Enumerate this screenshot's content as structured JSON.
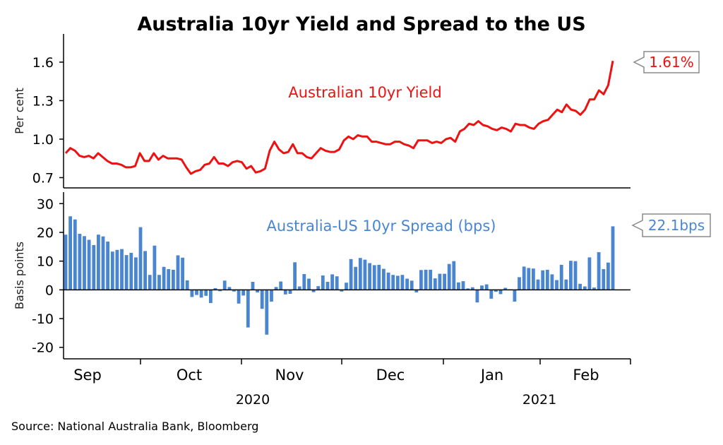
{
  "title": "Australia 10yr Yield and Spread to the US",
  "source": "Source: National Australia Bank, Bloomberg",
  "colors": {
    "yield": "#ee1111",
    "spread": "#4a86d0",
    "axis": "#000000",
    "callout_border": "#8a8a8a"
  },
  "chart_data": [
    {
      "type": "line",
      "series_label": "Australian 10yr Yield",
      "ylabel": "Per cent",
      "ylim": [
        0.62,
        1.82
      ],
      "yticks": [
        "0.7",
        "1.0",
        "1.3",
        "1.6"
      ],
      "callout": "1.61%",
      "series": [
        {
          "name": "Australian 10yr Yield",
          "values": [
            0.89,
            0.93,
            0.91,
            0.87,
            0.86,
            0.87,
            0.85,
            0.89,
            0.86,
            0.83,
            0.81,
            0.81,
            0.8,
            0.78,
            0.78,
            0.79,
            0.89,
            0.83,
            0.83,
            0.89,
            0.84,
            0.87,
            0.85,
            0.85,
            0.85,
            0.84,
            0.78,
            0.73,
            0.75,
            0.76,
            0.8,
            0.81,
            0.86,
            0.81,
            0.81,
            0.79,
            0.82,
            0.83,
            0.82,
            0.77,
            0.79,
            0.74,
            0.75,
            0.77,
            0.91,
            0.98,
            0.92,
            0.89,
            0.9,
            0.96,
            0.89,
            0.89,
            0.86,
            0.85,
            0.89,
            0.93,
            0.91,
            0.9,
            0.9,
            0.92,
            0.99,
            1.02,
            1.0,
            1.03,
            1.02,
            1.02,
            0.98,
            0.98,
            0.97,
            0.96,
            0.96,
            0.98,
            0.98,
            0.96,
            0.95,
            0.93,
            0.99,
            0.99,
            0.99,
            0.97,
            0.98,
            0.97,
            1.0,
            1.01,
            0.98,
            1.06,
            1.08,
            1.12,
            1.11,
            1.14,
            1.11,
            1.1,
            1.08,
            1.07,
            1.09,
            1.08,
            1.06,
            1.12,
            1.11,
            1.11,
            1.09,
            1.08,
            1.12,
            1.14,
            1.15,
            1.19,
            1.23,
            1.21,
            1.27,
            1.23,
            1.22,
            1.19,
            1.23,
            1.31,
            1.31,
            1.38,
            1.35,
            1.42,
            1.61
          ]
        }
      ]
    },
    {
      "type": "bar",
      "series_label": "Australia-US 10yr Spread (bps)",
      "ylabel": "Basis points",
      "ylim": [
        -24,
        34
      ],
      "yticks": [
        "-20",
        "-10",
        "0",
        "10",
        "20",
        "30"
      ],
      "callout": "22.1bps",
      "series": [
        {
          "name": "Australia-US 10yr Spread (bps)",
          "values": [
            19.2,
            25.6,
            24.5,
            19.5,
            18.7,
            17.4,
            15.6,
            19.2,
            18.6,
            16.8,
            13.3,
            13.9,
            14.2,
            12.1,
            12.9,
            11.3,
            21.8,
            13.5,
            5.2,
            15.4,
            5.2,
            8.0,
            7.2,
            7.0,
            12.0,
            11.2,
            3.3,
            -2.5,
            -1.8,
            -2.7,
            -2.1,
            -4.6,
            0.6,
            -0.5,
            3.2,
            1.0,
            -0.6,
            -4.8,
            -2.0,
            -13.1,
            2.8,
            -0.9,
            -6.6,
            -15.6,
            -4.1,
            1.0,
            2.9,
            -1.6,
            -1.4,
            9.6,
            1.2,
            5.5,
            3.9,
            -0.8,
            1.3,
            5.0,
            2.8,
            5.4,
            4.7,
            -0.6,
            2.5,
            10.7,
            8.0,
            11.1,
            10.5,
            9.3,
            8.6,
            8.7,
            7.3,
            6.0,
            5.2,
            4.9,
            5.2,
            3.9,
            3.2,
            -0.9,
            6.9,
            7.0,
            7.0,
            4.0,
            5.6,
            5.6,
            9.0,
            10.0,
            2.6,
            3.0,
            0.5,
            0.9,
            -4.4,
            1.5,
            1.9,
            -3.1,
            -0.7,
            -1.5,
            0.7,
            0.2,
            -4.1,
            4.4,
            8.1,
            7.6,
            7.4,
            3.6,
            6.8,
            7.0,
            5.4,
            3.4,
            8.7,
            3.6,
            10.1,
            10.0,
            2.1,
            1.2,
            11.3,
            0.8,
            13.1,
            7.2,
            9.5,
            22.1
          ]
        }
      ]
    }
  ],
  "x_axis": {
    "months": [
      "Sep",
      "Oct",
      "Nov",
      "Dec",
      "Jan",
      "Feb"
    ],
    "years": [
      "2020",
      "2021"
    ]
  }
}
